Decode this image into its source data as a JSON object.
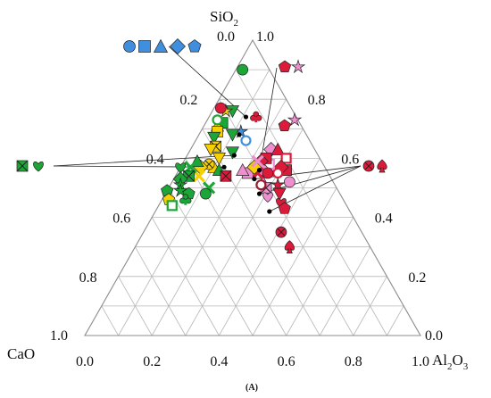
{
  "chart_data": {
    "type": "scatter",
    "subtype": "ternary",
    "caption": "(A)",
    "axes": {
      "top": {
        "label": "SiO",
        "subscript": "2"
      },
      "left": {
        "label": "CaO",
        "subscript": ""
      },
      "right": {
        "label": "Al",
        "subscript": "2",
        "label_suffix": "O",
        "subscript2": "3"
      }
    },
    "corner_ticks": {
      "top_left": "0.0",
      "top_right": "1.0",
      "left": "1.0",
      "bottom_left": "0.0",
      "right": "0.0",
      "bottom_right": "1.0"
    },
    "bottom_ticks": [
      "0.0",
      "0.2",
      "0.4",
      "0.6",
      "0.8",
      "1.0"
    ],
    "left_ticks": [
      "0.2",
      "0.4",
      "0.6",
      "0.8"
    ],
    "right_ticks": [
      "0.8",
      "0.6",
      "0.4",
      "0.2"
    ],
    "grid": true,
    "grid_step": 0.1,
    "colors": {
      "blue": "#3f8fde",
      "red": "#dc1a3a",
      "pink": "#ee8fd0",
      "yellow": "#f6d000",
      "green": "#1ba637",
      "darkred": "#9b1b2e"
    },
    "legend_groups": [
      {
        "color": "blue",
        "markers": [
          "circle",
          "square",
          "triangle",
          "diamond",
          "pentagon"
        ]
      },
      {
        "color": "red",
        "markers": [
          "spade"
        ]
      }
    ],
    "points": [
      {
        "c": 0.08,
        "a": 0.02,
        "color": "green",
        "marker": "circle"
      },
      {
        "c": 0.19,
        "a": 0.12,
        "color": "blue",
        "marker": "star"
      },
      {
        "c": 0.19,
        "a": 0.15,
        "color": "blue",
        "marker": "hollow-circle"
      },
      {
        "c": 0.05,
        "a": 0.24,
        "color": "red",
        "marker": "pentagon"
      },
      {
        "c": 0.01,
        "a": 0.26,
        "color": "pink",
        "marker": "star"
      },
      {
        "c": 0.12,
        "a": 0.14,
        "color": "red",
        "marker": "club"
      },
      {
        "c": 0.13,
        "a": 0.24,
        "color": "pink",
        "marker": "diamond"
      },
      {
        "c": 0.11,
        "a": 0.26,
        "color": "red",
        "marker": "triangle"
      },
      {
        "c": 0.1,
        "a": 0.3,
        "color": "red",
        "marker": "hollow-square"
      },
      {
        "c": 0.12,
        "a": 0.32,
        "color": "red",
        "marker": "square"
      },
      {
        "c": 0.13,
        "a": 0.3,
        "color": "red",
        "marker": "diamond"
      },
      {
        "c": 0.13,
        "a": 0.35,
        "color": "pink",
        "marker": "circle"
      },
      {
        "c": 0.15,
        "a": 0.3,
        "color": "red",
        "marker": "hollow-circle"
      },
      {
        "c": 0.16,
        "a": 0.26,
        "color": "pink",
        "marker": "hollow-square"
      },
      {
        "c": 0.16,
        "a": 0.24,
        "color": "red",
        "marker": "square"
      },
      {
        "c": 0.18,
        "a": 0.23,
        "color": "red",
        "marker": "diamond"
      },
      {
        "c": 0.19,
        "a": 0.25,
        "color": "pink",
        "marker": "circle"
      },
      {
        "c": 0.21,
        "a": 0.27,
        "color": "pink",
        "marker": "triangle"
      },
      {
        "c": 0.17,
        "a": 0.32,
        "color": "red",
        "marker": "star"
      },
      {
        "c": 0.18,
        "a": 0.34,
        "color": "red",
        "marker": "triangle-down"
      },
      {
        "c": 0.19,
        "a": 0.36,
        "color": "red",
        "marker": "heart"
      },
      {
        "c": 0.19,
        "a": 0.38,
        "color": "red",
        "marker": "pentagon"
      },
      {
        "c": 0.21,
        "a": 0.24,
        "color": "red",
        "marker": "x-cross"
      },
      {
        "c": 0.21,
        "a": 0.29,
        "color": "pink",
        "marker": "x-square"
      },
      {
        "c": 0.22,
        "a": 0.27,
        "color": "darkred",
        "marker": "hollow-circle"
      },
      {
        "c": 0.24,
        "a": 0.21,
        "color": "pink",
        "marker": "square"
      },
      {
        "c": 0.22,
        "a": 0.31,
        "color": "pink",
        "marker": "heart"
      },
      {
        "c": 0.21,
        "a": 0.22,
        "color": "yellow",
        "marker": "diamond"
      },
      {
        "c": 0.19,
        "a": 0.22,
        "color": "pink",
        "marker": "x-cross"
      },
      {
        "c": 0.25,
        "a": 0.19,
        "color": "pink",
        "marker": "triangle"
      },
      {
        "c": 0.18,
        "a": 0.27,
        "color": "red",
        "marker": "circle"
      },
      {
        "c": 0.24,
        "a": 0.41,
        "color": "red",
        "marker": "x-circle"
      },
      {
        "c": 0.24,
        "a": 0.46,
        "color": "red",
        "marker": "spade"
      },
      {
        "c": 0.18,
        "a": 0.06,
        "color": "green",
        "marker": "triangle-down"
      },
      {
        "c": 0.2,
        "a": 0.04,
        "color": "yellow",
        "marker": "star"
      },
      {
        "c": 0.23,
        "a": 0.05,
        "color": "green",
        "marker": "square"
      },
      {
        "c": 0.25,
        "a": 0.04,
        "color": "yellow",
        "marker": "triangle"
      },
      {
        "c": 0.26,
        "a": 0.05,
        "color": "yellow",
        "marker": "square"
      },
      {
        "c": 0.24,
        "a": 0.03,
        "color": "green",
        "marker": "hollow-circle"
      },
      {
        "c": 0.21,
        "a": 0.02,
        "color": "red",
        "marker": "circle"
      },
      {
        "c": 0.22,
        "a": 0.1,
        "color": "green",
        "marker": "triangle-down"
      },
      {
        "c": 0.25,
        "a": 0.13,
        "color": "green",
        "marker": "triangle-down"
      },
      {
        "c": 0.28,
        "a": 0.05,
        "color": "green",
        "marker": "triangle-down"
      },
      {
        "c": 0.29,
        "a": 0.07,
        "color": "yellow",
        "marker": "x-square"
      },
      {
        "c": 0.3,
        "a": 0.1,
        "color": "yellow",
        "marker": "triangle-down"
      },
      {
        "c": 0.31,
        "a": 0.06,
        "color": "yellow",
        "marker": "triangle-down"
      },
      {
        "c": 0.33,
        "a": 0.1,
        "color": "yellow",
        "marker": "triangle"
      },
      {
        "c": 0.32,
        "a": 0.12,
        "color": "green",
        "marker": "triangle"
      },
      {
        "c": 0.34,
        "a": 0.08,
        "color": "yellow",
        "marker": "x-circle"
      },
      {
        "c": 0.31,
        "a": 0.15,
        "color": "red",
        "marker": "x-square"
      },
      {
        "c": 0.37,
        "a": 0.06,
        "color": "yellow",
        "marker": "diamond"
      },
      {
        "c": 0.37,
        "a": 0.04,
        "color": "green",
        "marker": "triangle"
      },
      {
        "c": 0.39,
        "a": 0.07,
        "color": "yellow",
        "marker": "x-cross"
      },
      {
        "c": 0.38,
        "a": 0.12,
        "color": "green",
        "marker": "x-cross"
      },
      {
        "c": 0.4,
        "a": 0.12,
        "color": "green",
        "marker": "circle"
      },
      {
        "c": 0.4,
        "a": 0.03,
        "color": "green",
        "marker": "x-cross"
      },
      {
        "c": 0.42,
        "a": 0.04,
        "color": "green",
        "marker": "x-square"
      },
      {
        "c": 0.43,
        "a": 0.0,
        "color": "green",
        "marker": "heart"
      },
      {
        "c": 0.45,
        "a": 0.02,
        "color": "green",
        "marker": "diamond"
      },
      {
        "c": 0.46,
        "a": 0.03,
        "color": "green",
        "marker": "star"
      },
      {
        "c": 0.47,
        "a": 0.04,
        "color": "green",
        "marker": "star"
      },
      {
        "c": 0.45,
        "a": 0.07,
        "color": "green",
        "marker": "pentagon"
      },
      {
        "c": 0.47,
        "a": 0.07,
        "color": "green",
        "marker": "club"
      },
      {
        "c": 0.51,
        "a": 0.0,
        "color": "green",
        "marker": "pentagon"
      },
      {
        "c": 0.52,
        "a": 0.02,
        "color": "yellow",
        "marker": "pentagon"
      },
      {
        "c": 0.52,
        "a": 0.04,
        "color": "green",
        "marker": "hollow-square"
      }
    ],
    "side_markers": [
      {
        "px": [
          25,
          186
        ],
        "color": "green",
        "marker": "x-square"
      },
      {
        "px": [
          43,
          186
        ],
        "color": "green",
        "marker": "heart"
      },
      {
        "px": [
          413,
          186
        ],
        "color": "red",
        "marker": "x-circle"
      },
      {
        "px": [
          428,
          186
        ],
        "color": "red",
        "marker": "spade"
      },
      {
        "px": [
          319,
          75
        ],
        "color": "red",
        "marker": "pentagon"
      },
      {
        "px": [
          334,
          75
        ],
        "color": "pink",
        "marker": "star"
      }
    ],
    "averages": [
      {
        "c": 0.15,
        "a": 0.11
      },
      {
        "c": 0.2,
        "a": 0.12
      },
      {
        "c": 0.25,
        "a": 0.14
      },
      {
        "c": 0.3,
        "a": 0.13
      },
      {
        "c": 0.2,
        "a": 0.24
      },
      {
        "c": 0.23,
        "a": 0.24
      },
      {
        "c": 0.24,
        "a": 0.28
      },
      {
        "c": 0.24,
        "a": 0.34
      }
    ]
  }
}
